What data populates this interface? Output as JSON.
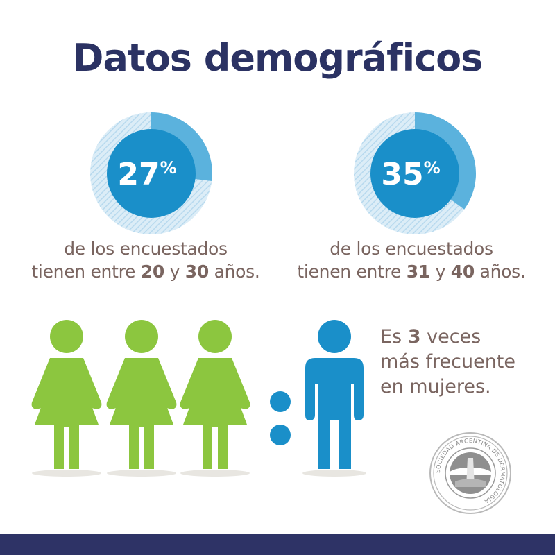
{
  "title": "Datos demográficos",
  "colors": {
    "navy": "#2b3263",
    "blue": "#1a8fc9",
    "light_blue": "#5bb2dd",
    "pale_blue": "#c9e3f2",
    "green": "#8cc63f",
    "brown": "#7a6560",
    "footer": "#2e3366",
    "shadow": "#e8e6e1"
  },
  "chart_data": [
    {
      "type": "pie",
      "value": 27,
      "unit": "%",
      "caption": {
        "line1": "de los encuestados",
        "line2_pre": "tienen entre ",
        "from": "20",
        "y": " y ",
        "to": "30",
        "line2_post": " años."
      }
    },
    {
      "type": "pie",
      "value": 35,
      "unit": "%",
      "caption": {
        "line1": "de los encuestados",
        "line2_pre": "tienen entre ",
        "from": "31",
        "y": " y ",
        "to": "40",
        "line2_post": " años."
      }
    }
  ],
  "ratio": {
    "women_icons": 3,
    "men_icons": 1,
    "line1_pre": "Es ",
    "number": "3",
    "line1_post": " veces",
    "line2": "más frecuente",
    "line3": "en mujeres."
  },
  "seal": {
    "text": "SOCIEDAD ARGENTINA DE DERMATOLOGIA"
  }
}
